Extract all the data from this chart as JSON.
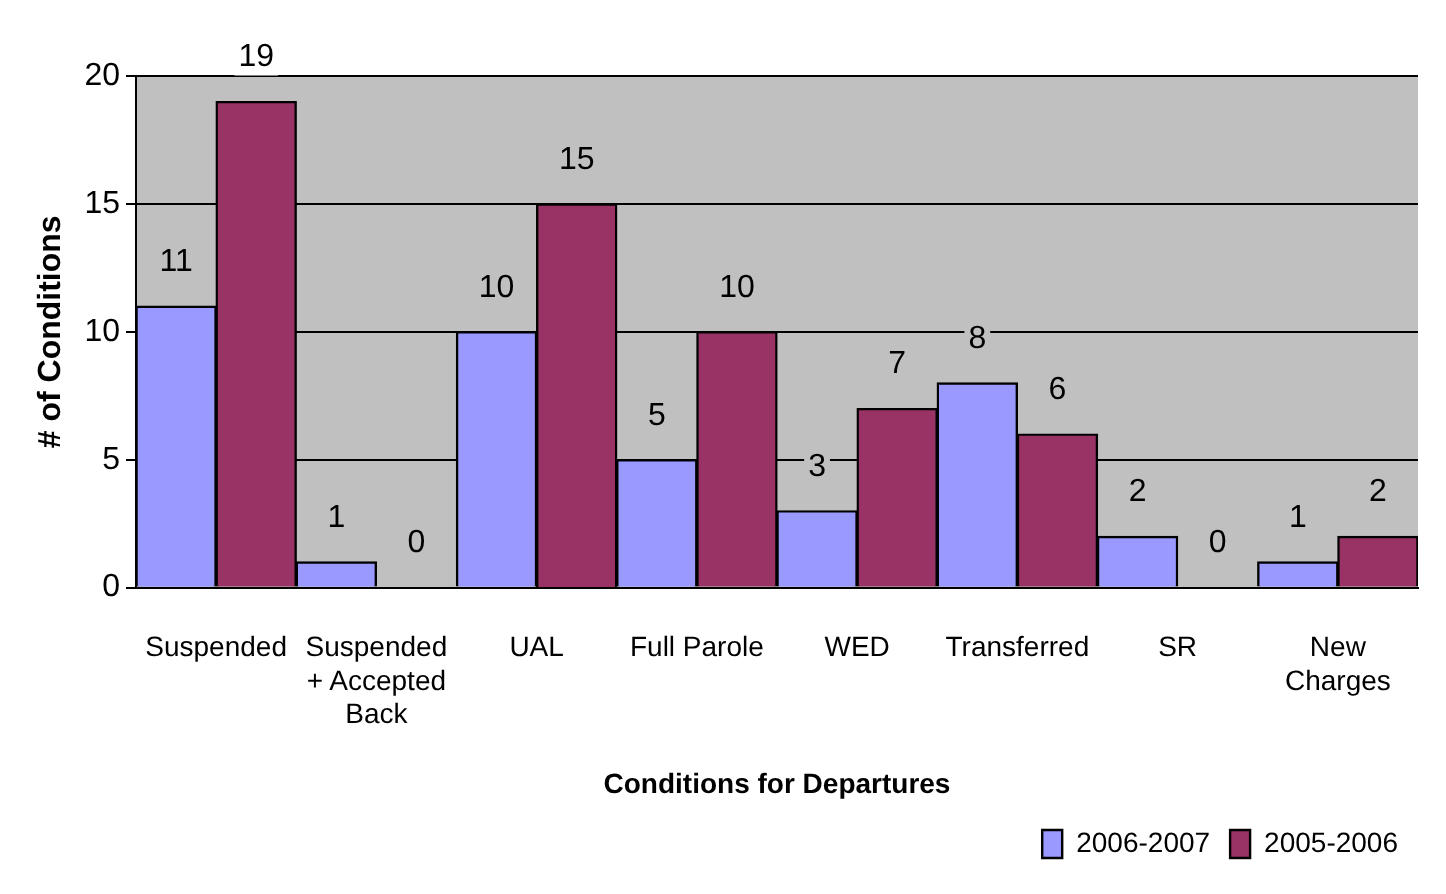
{
  "chart_data": {
    "type": "bar",
    "xlabel": "Conditions for Departures",
    "ylabel": "# of Conditions",
    "categories": [
      "Suspended",
      "Suspended + Accepted Back",
      "UAL",
      "Full Parole",
      "WED",
      "Transferred",
      "SR",
      "New Charges"
    ],
    "series": [
      {
        "name": "2006-2007",
        "color": "#9999ff",
        "values": [
          11,
          1,
          10,
          5,
          3,
          8,
          2,
          1
        ]
      },
      {
        "name": "2005-2006",
        "color": "#993366",
        "values": [
          19,
          0,
          15,
          10,
          7,
          6,
          0,
          2
        ]
      }
    ],
    "ylim": [
      0,
      20
    ],
    "yticks": [
      0,
      5,
      10,
      15,
      20
    ],
    "grid": "y",
    "legend": "bottom right",
    "data_labels": true
  }
}
